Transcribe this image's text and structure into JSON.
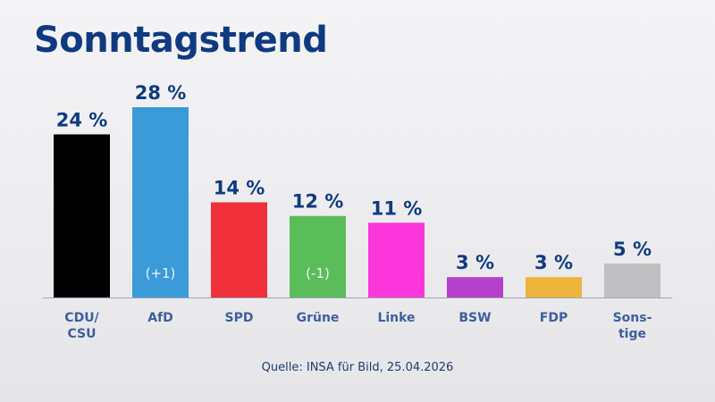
{
  "chart_data": {
    "type": "bar",
    "title": "Sonntagstrend",
    "categories": [
      "CDU/\nCSU",
      "AfD",
      "SPD",
      "Grüne",
      "Linke",
      "BSW",
      "FDP",
      "Sons-\ntige"
    ],
    "values": [
      24,
      28,
      14,
      12,
      11,
      3,
      3,
      5
    ],
    "value_labels": [
      "24 %",
      "28 %",
      "14 %",
      "12 %",
      "11 %",
      "3 %",
      "3 %",
      "5 %"
    ],
    "changes": [
      "",
      "(+1)",
      "",
      "(-1)",
      "",
      "",
      "",
      ""
    ],
    "colors": [
      "#000000",
      "#3a9bd8",
      "#f0303a",
      "#5bbd5a",
      "#fb36db",
      "#b540cc",
      "#eeb43c",
      "#c0c0c2"
    ],
    "xlabel": "",
    "ylabel": "",
    "ylim": [
      0,
      28
    ],
    "grid": false,
    "source": "Quelle: INSA für Bild, 25.04.2026"
  }
}
